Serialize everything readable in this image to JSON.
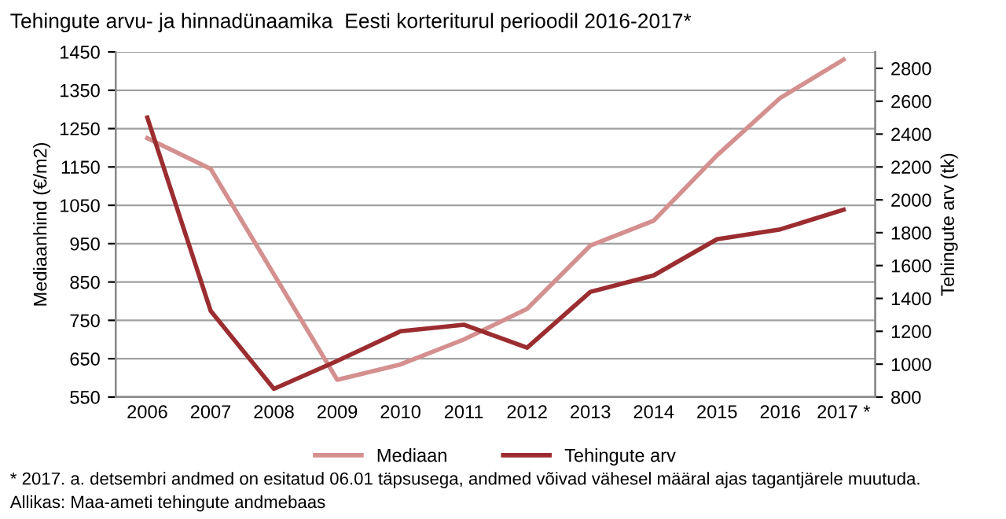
{
  "chart_data": {
    "type": "line",
    "title": "Tehingute arvu- ja hinnadünaamika  Eesti korteriturul perioodil 2016-2017*",
    "categories": [
      "2006",
      "2007",
      "2008",
      "2009",
      "2010",
      "2011",
      "2012",
      "2013",
      "2014",
      "2015",
      "2016",
      "2017 *"
    ],
    "series": [
      {
        "name": "Mediaan",
        "color": "#d4908f",
        "values": [
          1225,
          1145,
          870,
          595,
          635,
          700,
          780,
          945,
          1010,
          1180,
          1330,
          1430
        ]
      },
      {
        "name": "Tehingute arv",
        "color": "#9b2d30",
        "axis": "y2",
        "values": [
          2500,
          1325,
          850,
          1020,
          1200,
          1240,
          1100,
          1440,
          1540,
          1760,
          1820,
          1940
        ]
      }
    ],
    "ylabel": "Mediaanhind (€/m2)",
    "y2label": "Tehingute arv (tk)",
    "ylim": [
      550,
      1450
    ],
    "yticks": [
      550,
      650,
      750,
      850,
      950,
      1050,
      1150,
      1250,
      1350,
      1450
    ],
    "y2lim": [
      800,
      2900
    ],
    "y2ticks": [
      800,
      1000,
      1200,
      1400,
      1600,
      1800,
      2000,
      2200,
      2400,
      2600,
      2800
    ],
    "grid": "y",
    "legend": "bottom",
    "marker": "none",
    "line_style": "solid",
    "annotations": [
      "* 2017. a. detsembri andmed on esitatud 06.01 täpsusega, andmed võivad vähesel määral ajas tagantjärele muutuda.",
      "Allikas: Maa-ameti tehingute andmebaas"
    ]
  }
}
